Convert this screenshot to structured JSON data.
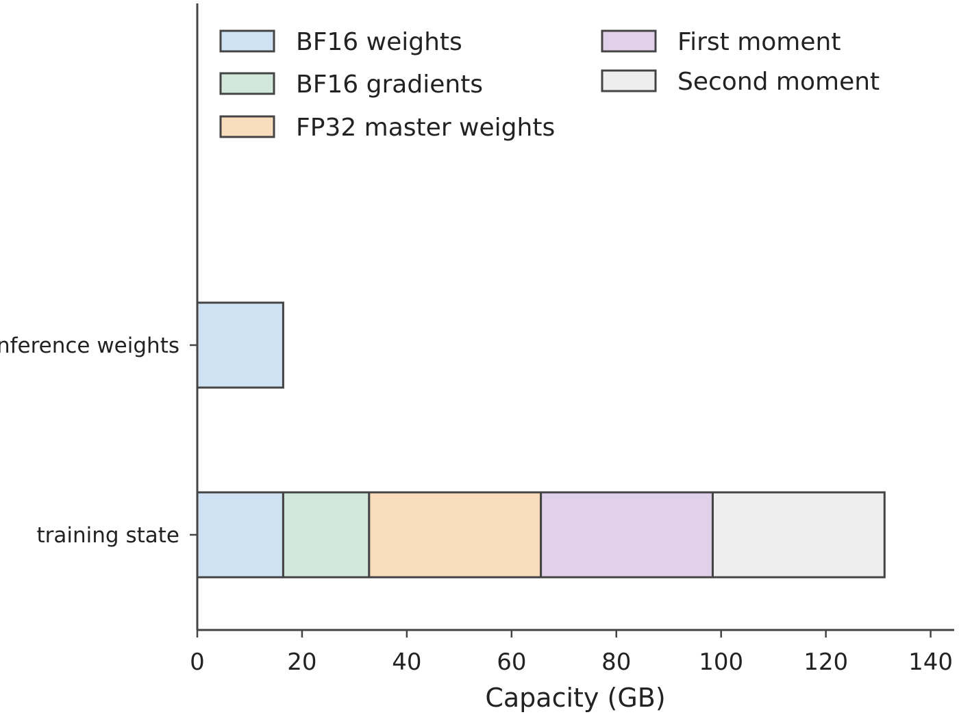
{
  "chart_data": {
    "type": "bar",
    "orientation": "horizontal",
    "stacked": true,
    "categories": [
      "inference weights",
      "training state"
    ],
    "series": [
      {
        "name": "BF16 weights",
        "values": [
          16.4,
          16.4
        ],
        "color": "#cfe2f3"
      },
      {
        "name": "BF16 gradients",
        "values": [
          0,
          16.4
        ],
        "color": "#d2e8dc"
      },
      {
        "name": "FP32 master weights",
        "values": [
          0,
          32.8
        ],
        "color": "#f8dcbc"
      },
      {
        "name": "First moment",
        "values": [
          0,
          32.8
        ],
        "color": "#e0d0e9"
      },
      {
        "name": "Second moment",
        "values": [
          0,
          32.8
        ],
        "color": "#eeeeee"
      }
    ],
    "xlabel": "Capacity (GB)",
    "xlim": [
      0,
      140
    ],
    "xticks": [
      0,
      20,
      40,
      60,
      80,
      100,
      120,
      140
    ],
    "grid": false,
    "legend_position": "top",
    "edge_color": "#444444"
  }
}
